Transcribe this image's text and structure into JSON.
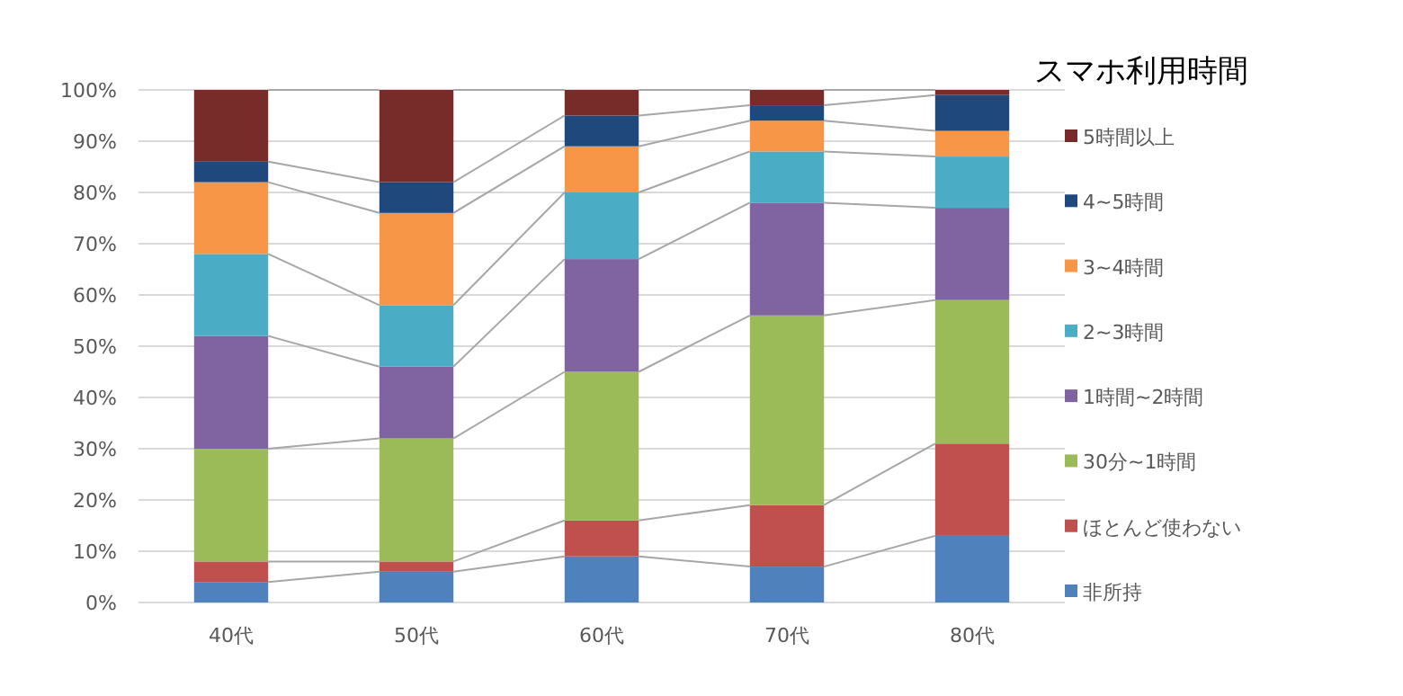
{
  "chart_data": {
    "type": "bar",
    "stacked": true,
    "legend_title": "スマホ利用時間",
    "categories": [
      "40代",
      "50代",
      "60代",
      "70代",
      "80代"
    ],
    "series": [
      {
        "name": "非所持",
        "color": "#4f81bd",
        "values": [
          4,
          6,
          9,
          7,
          13
        ]
      },
      {
        "name": "ほとんど使わない",
        "color": "#c0504d",
        "values": [
          4,
          2,
          7,
          12,
          18
        ]
      },
      {
        "name": "30分~1時間",
        "color": "#9bbb59",
        "values": [
          22,
          24,
          29,
          37,
          28
        ]
      },
      {
        "name": "1時間~2時間",
        "color": "#8064a2",
        "values": [
          22,
          14,
          22,
          22,
          18
        ]
      },
      {
        "name": "2~3時間",
        "color": "#4bacc6",
        "values": [
          16,
          12,
          13,
          10,
          10
        ]
      },
      {
        "name": "3~4時間",
        "color": "#f79646",
        "values": [
          14,
          18,
          9,
          6,
          5
        ]
      },
      {
        "name": "4~5時間",
        "color": "#1f497d",
        "values": [
          4,
          6,
          6,
          3,
          7
        ]
      },
      {
        "name": "5時間以上",
        "color": "#772c2a",
        "values": [
          14,
          18,
          5,
          3,
          1
        ]
      }
    ],
    "ylim": [
      0,
      100
    ],
    "yticks": [
      {
        "value": 0,
        "label": "0%"
      },
      {
        "value": 10,
        "label": "10%"
      },
      {
        "value": 20,
        "label": "20%"
      },
      {
        "value": 30,
        "label": "30%"
      },
      {
        "value": 40,
        "label": "40%"
      },
      {
        "value": 50,
        "label": "50%"
      },
      {
        "value": 60,
        "label": "60%"
      },
      {
        "value": 70,
        "label": "70%"
      },
      {
        "value": 80,
        "label": "80%"
      },
      {
        "value": 90,
        "label": "90%"
      },
      {
        "value": 100,
        "label": "100%"
      }
    ],
    "grid": "y",
    "legend": "right"
  }
}
